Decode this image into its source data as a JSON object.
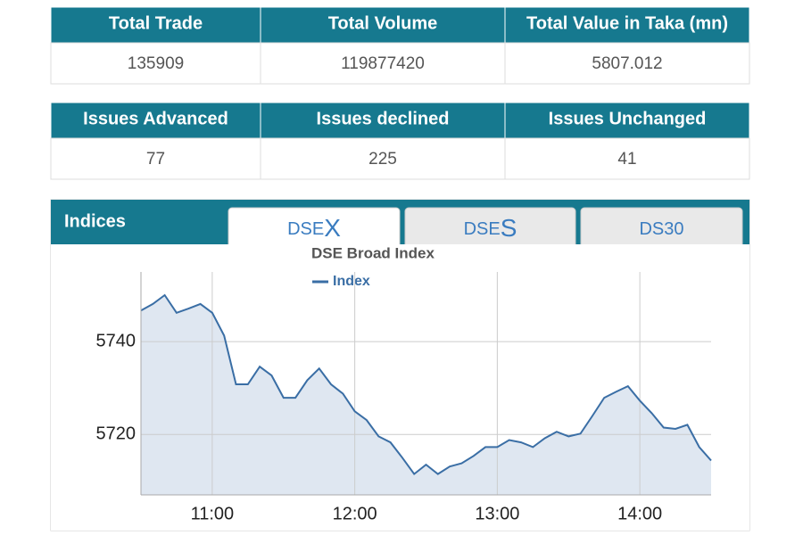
{
  "tables": [
    {
      "header": [
        "Total Trade",
        "Total Volume",
        "Total Value in Taka (mn)"
      ],
      "row": [
        135909,
        119877420,
        5807.012
      ]
    },
    {
      "header": [
        "Issues Advanced",
        "Issues declined",
        "Issues Unchanged"
      ],
      "row": [
        77,
        225,
        41
      ]
    }
  ],
  "panel": {
    "title": "Indices",
    "tabs": [
      {
        "prefix": "DSE",
        "suffix": "X"
      },
      {
        "prefix": "DSE",
        "suffix": "S"
      },
      {
        "prefix": "DS30",
        "suffix": ""
      }
    ]
  },
  "chart_data": {
    "type": "area",
    "title": "DSE Broad Index",
    "x": [
      "10:30",
      "10:35",
      "10:40",
      "10:45",
      "10:50",
      "10:55",
      "11:00",
      "11:05",
      "11:10",
      "11:15",
      "11:20",
      "11:25",
      "11:30",
      "11:35",
      "11:40",
      "11:45",
      "11:50",
      "11:55",
      "12:00",
      "12:05",
      "12:10",
      "12:15",
      "12:20",
      "12:25",
      "12:30",
      "12:35",
      "12:40",
      "12:45",
      "12:50",
      "12:55",
      "13:00",
      "13:05",
      "13:10",
      "13:15",
      "13:20",
      "13:25",
      "13:30",
      "13:35",
      "13:40",
      "13:45",
      "13:50",
      "13:55",
      "14:00",
      "14:05",
      "14:10",
      "14:15",
      "14:20",
      "14:25",
      "14:30"
    ],
    "series": [
      {
        "name": "Index",
        "color": "#3a6ea5",
        "fill": "#dfe7f1",
        "values": [
          5746.7,
          5748.1,
          5750.0,
          5746.2,
          5747.1,
          5748.1,
          5746.2,
          5741.3,
          5730.8,
          5730.8,
          5734.6,
          5732.7,
          5727.9,
          5727.9,
          5731.7,
          5734.2,
          5730.8,
          5728.8,
          5725.0,
          5723.1,
          5719.6,
          5718.3,
          5715.0,
          5711.5,
          5713.5,
          5711.5,
          5713.1,
          5713.8,
          5715.4,
          5717.3,
          5717.3,
          5718.8,
          5718.3,
          5717.3,
          5719.2,
          5720.6,
          5719.6,
          5720.2,
          5724.0,
          5727.9,
          5729.2,
          5730.4,
          5727.3,
          5724.6,
          5721.5,
          5721.2,
          5722.1,
          5717.3,
          5714.4
        ]
      }
    ],
    "xlim": [
      "10:30",
      "14:30"
    ],
    "xticks": [
      "11:00",
      "12:00",
      "13:00",
      "14:00"
    ],
    "ylim": [
      5707,
      5755
    ],
    "yticks": [
      5720,
      5740
    ],
    "grid": true
  }
}
